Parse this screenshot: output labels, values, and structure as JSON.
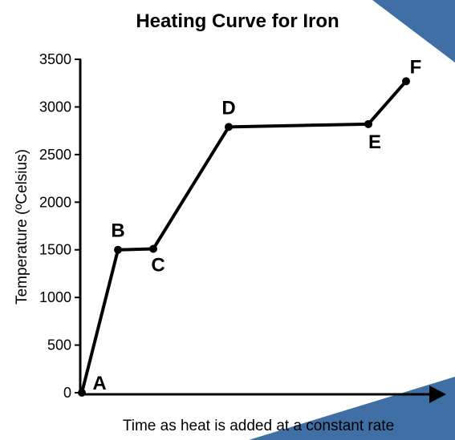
{
  "chart_data": {
    "type": "line",
    "title": "Heating Curve for Iron",
    "xlabel": "Time as heat is added at a constant rate",
    "ylabel": "Temperature (ºCelsius)",
    "ylim": [
      0,
      3500
    ],
    "yticks": [
      0,
      500,
      1000,
      1500,
      2000,
      2500,
      3000,
      3500
    ],
    "x_tick_labels_shown": false,
    "grid": false,
    "points": [
      {
        "label": "A",
        "x": 0,
        "y": 0
      },
      {
        "label": "B",
        "x": 1,
        "y": 1500
      },
      {
        "label": "C",
        "x": 2,
        "y": 1510
      },
      {
        "label": "D",
        "x": 4,
        "y": 2790
      },
      {
        "label": "E",
        "x": 8,
        "y": 2820
      },
      {
        "label": "F",
        "x": 9,
        "y": 3270
      }
    ],
    "series_color": "#000000",
    "marker_color": "#000000"
  }
}
